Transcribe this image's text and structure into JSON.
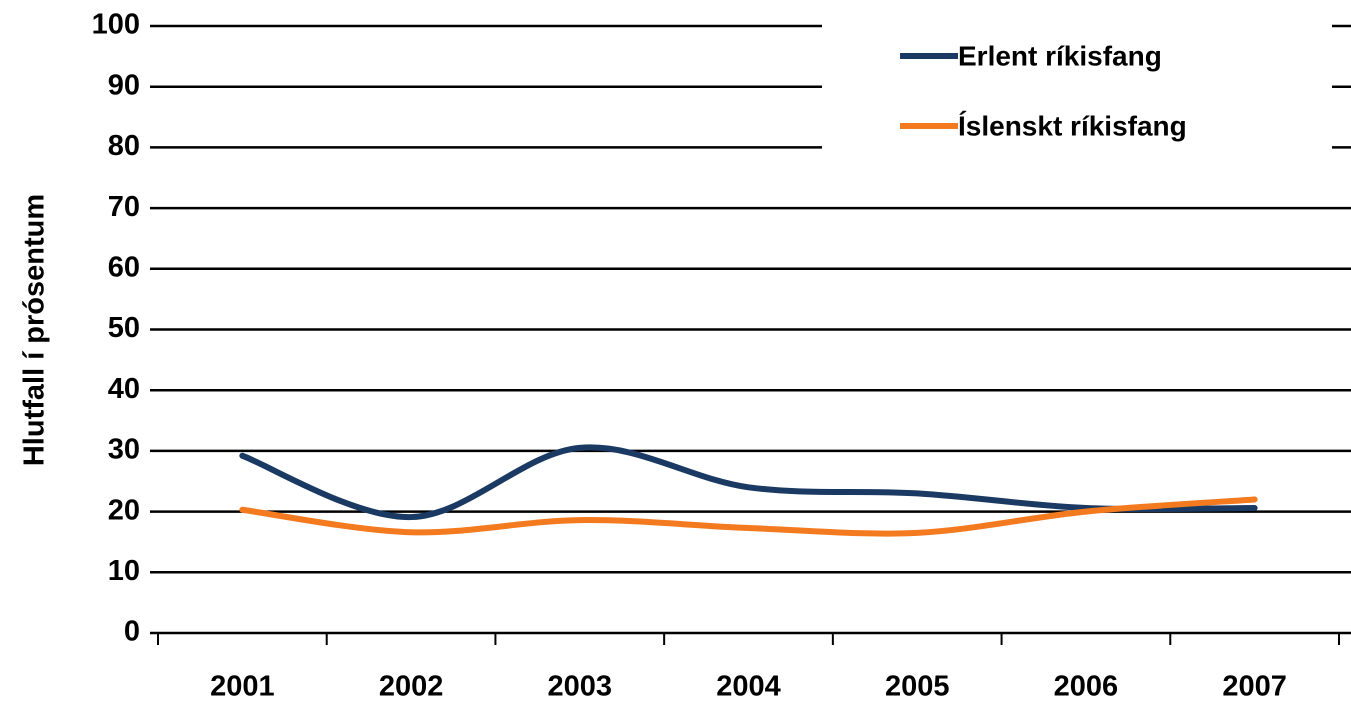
{
  "chart_data": {
    "type": "line",
    "y_label": "Hlutfall í prósentum",
    "categories": [
      "2001",
      "2002",
      "2003",
      "2004",
      "2005",
      "2006",
      "2007"
    ],
    "series": [
      {
        "name": "Erlent ríkisfang",
        "color": "#1b3a63",
        "values": [
          29.2,
          19.1,
          30.5,
          24,
          23,
          20.6,
          20.6
        ]
      },
      {
        "name": "Íslenskt ríkisfang",
        "color": "#f47a20",
        "values": [
          20.3,
          16.6,
          18.6,
          17.3,
          16.5,
          20,
          22
        ]
      }
    ],
    "ylim": [
      0,
      100
    ],
    "yticks": [
      0,
      10,
      20,
      30,
      40,
      50,
      60,
      70,
      80,
      90,
      100
    ],
    "grid": true,
    "smooth": true,
    "legend": "upper right"
  }
}
